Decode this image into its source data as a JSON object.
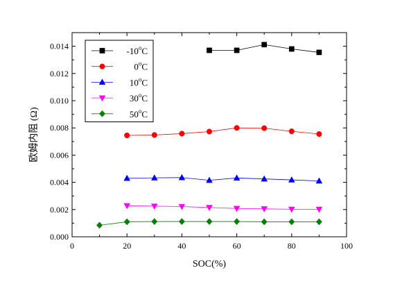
{
  "chart_data": {
    "type": "scatter",
    "title": "",
    "xlabel": "SOC(%)",
    "ylabel": "欧姆内阻 (Ω)",
    "xlim": [
      0,
      100
    ],
    "ylim": [
      0.0,
      0.015
    ],
    "xticks": [
      0,
      20,
      40,
      60,
      80,
      100
    ],
    "yticks": [
      0.0,
      0.002,
      0.004,
      0.006,
      0.008,
      0.01,
      0.012,
      0.014
    ],
    "xtick_labels": [
      "0",
      "20",
      "40",
      "60",
      "80",
      "100"
    ],
    "ytick_labels": [
      "0.000",
      "0.002",
      "0.004",
      "0.006",
      "0.008",
      "0.010",
      "0.012",
      "0.014"
    ],
    "grid": false,
    "legend_position": "top-left",
    "series": [
      {
        "name_prefix": "-10",
        "name_unit": "C",
        "name_sup": "o",
        "color": "#000000",
        "marker": "square",
        "x": [
          50,
          60,
          70,
          80,
          90
        ],
        "y": [
          0.0137,
          0.0137,
          0.01412,
          0.0138,
          0.01355
        ]
      },
      {
        "name_prefix": "0",
        "name_unit": "C",
        "name_sup": "o",
        "color": "#ff0000",
        "marker": "circle",
        "x": [
          20,
          30,
          40,
          50,
          60,
          70,
          80,
          90
        ],
        "y": [
          0.00745,
          0.00748,
          0.00758,
          0.00773,
          0.008,
          0.00798,
          0.00775,
          0.00755
        ]
      },
      {
        "name_prefix": "10",
        "name_unit": "C",
        "name_sup": "o",
        "color": "#0000ff",
        "marker": "triangle-up",
        "x": [
          20,
          30,
          40,
          50,
          60,
          70,
          80,
          90
        ],
        "y": [
          0.0043,
          0.00433,
          0.00435,
          0.00415,
          0.00432,
          0.00425,
          0.00418,
          0.0041
        ]
      },
      {
        "name_prefix": "30",
        "name_unit": "C",
        "name_sup": "o",
        "color": "#ff00ff",
        "marker": "triangle-down",
        "x": [
          20,
          30,
          40,
          50,
          60,
          70,
          80,
          90
        ],
        "y": [
          0.00228,
          0.00225,
          0.00222,
          0.00215,
          0.00208,
          0.00205,
          0.00202,
          0.00202
        ]
      },
      {
        "name_prefix": "50",
        "name_unit": "C",
        "name_sup": "o",
        "color": "#008000",
        "marker": "diamond",
        "x": [
          10,
          20,
          30,
          40,
          50,
          60,
          70,
          80,
          90
        ],
        "y": [
          0.00085,
          0.0011,
          0.00112,
          0.00112,
          0.00112,
          0.00112,
          0.0011,
          0.0011,
          0.0011
        ]
      }
    ]
  }
}
